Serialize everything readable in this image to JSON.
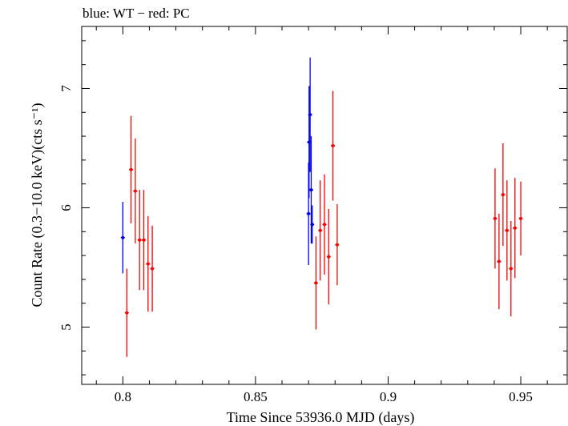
{
  "chart_data": {
    "type": "scatter",
    "title": "blue: WT − red: PC",
    "xlabel": "Time Since 53936.0 MJD (days)",
    "ylabel": "Count Rate (0.3−10.0 keV)(cts s⁻¹)",
    "xlim": [
      0.7845,
      0.9675
    ],
    "ylim": [
      4.52,
      7.52
    ],
    "x_ticks": [
      0.8,
      0.85,
      0.9,
      0.95
    ],
    "x_tick_labels": [
      "0.8",
      "0.85",
      "0.9",
      "0.95"
    ],
    "y_ticks": [
      5,
      6,
      7
    ],
    "y_tick_labels": [
      "5",
      "6",
      "7"
    ],
    "grid": false,
    "series": [
      {
        "color": "#0000ee",
        "points": [
          {
            "x": 0.8,
            "y": 5.75,
            "yerr_lo": 0.3,
            "yerr_hi": 0.3
          },
          {
            "x": 0.87,
            "y": 5.95,
            "yerr_lo": 0.43,
            "yerr_hi": 0.43
          },
          {
            "x": 0.8702,
            "y": 6.55,
            "yerr_lo": 0.47,
            "yerr_hi": 0.47
          },
          {
            "x": 0.8706,
            "y": 6.78,
            "yerr_lo": 0.48,
            "yerr_hi": 0.48
          },
          {
            "x": 0.871,
            "y": 6.15,
            "yerr_lo": 0.45,
            "yerr_hi": 0.45
          },
          {
            "x": 0.8714,
            "y": 5.86,
            "yerr_lo": 0.16,
            "yerr_hi": 0.16
          }
        ]
      },
      {
        "color": "#ff0000",
        "points": [
          {
            "x": 0.8015,
            "y": 5.12,
            "yerr_lo": 0.37,
            "yerr_hi": 0.37
          },
          {
            "x": 0.8031,
            "y": 6.32,
            "yerr_lo": 0.45,
            "yerr_hi": 0.45
          },
          {
            "x": 0.8047,
            "y": 6.14,
            "yerr_lo": 0.44,
            "yerr_hi": 0.44
          },
          {
            "x": 0.8063,
            "y": 5.73,
            "yerr_lo": 0.42,
            "yerr_hi": 0.42
          },
          {
            "x": 0.8079,
            "y": 5.73,
            "yerr_lo": 0.42,
            "yerr_hi": 0.42
          },
          {
            "x": 0.8095,
            "y": 5.53,
            "yerr_lo": 0.4,
            "yerr_hi": 0.4
          },
          {
            "x": 0.8111,
            "y": 5.49,
            "yerr_lo": 0.36,
            "yerr_hi": 0.36
          },
          {
            "x": 0.8728,
            "y": 5.37,
            "yerr_lo": 0.39,
            "yerr_hi": 0.39
          },
          {
            "x": 0.8744,
            "y": 5.81,
            "yerr_lo": 0.42,
            "yerr_hi": 0.42
          },
          {
            "x": 0.876,
            "y": 5.86,
            "yerr_lo": 0.42,
            "yerr_hi": 0.42
          },
          {
            "x": 0.8776,
            "y": 5.59,
            "yerr_lo": 0.4,
            "yerr_hi": 0.4
          },
          {
            "x": 0.8792,
            "y": 6.52,
            "yerr_lo": 0.46,
            "yerr_hi": 0.46
          },
          {
            "x": 0.8808,
            "y": 5.69,
            "yerr_lo": 0.34,
            "yerr_hi": 0.34
          },
          {
            "x": 0.9403,
            "y": 5.91,
            "yerr_lo": 0.42,
            "yerr_hi": 0.42
          },
          {
            "x": 0.9418,
            "y": 5.55,
            "yerr_lo": 0.4,
            "yerr_hi": 0.4
          },
          {
            "x": 0.9433,
            "y": 6.11,
            "yerr_lo": 0.43,
            "yerr_hi": 0.43
          },
          {
            "x": 0.9448,
            "y": 5.81,
            "yerr_lo": 0.42,
            "yerr_hi": 0.42
          },
          {
            "x": 0.9463,
            "y": 5.49,
            "yerr_lo": 0.4,
            "yerr_hi": 0.4
          },
          {
            "x": 0.9478,
            "y": 5.83,
            "yerr_lo": 0.42,
            "yerr_hi": 0.42
          },
          {
            "x": 0.95,
            "y": 5.91,
            "yerr_lo": 0.31,
            "yerr_hi": 0.31
          }
        ]
      }
    ]
  }
}
